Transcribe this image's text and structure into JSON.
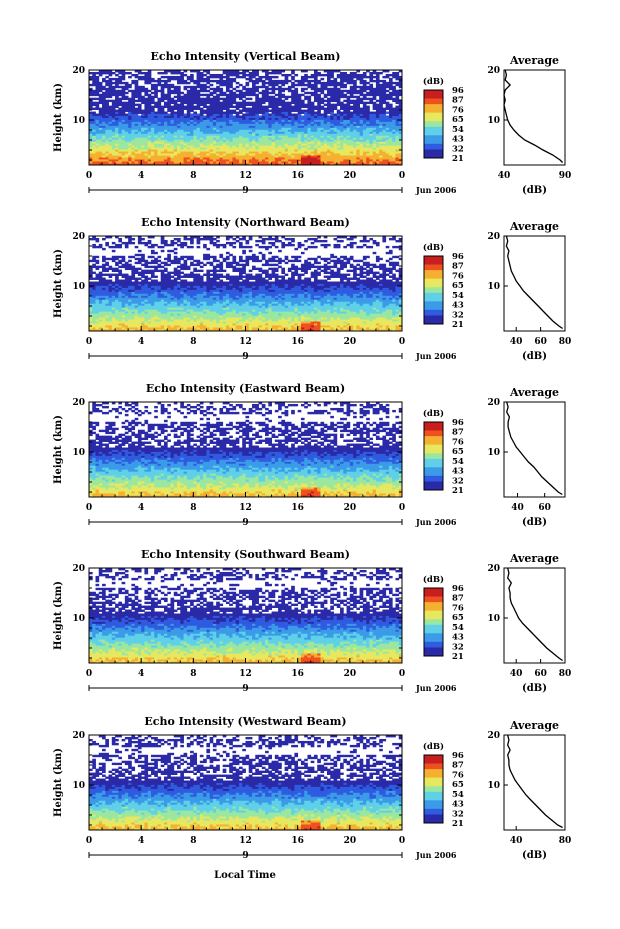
{
  "figure": {
    "bottom_xlabel": "Local Time",
    "heatmap_ylabel": "Height (km)",
    "colorbar_unit": "(dB)",
    "colorbar_ticks": [
      "96",
      "87",
      "76",
      "65",
      "54",
      "43",
      "32",
      "21"
    ],
    "date_axis_center_label": "9",
    "date_suffix": "Jun 2006",
    "profile_title": "Average",
    "profile_xlabel": "(dB)",
    "colorscale": [
      "#2a2aa8",
      "#2f5be0",
      "#3b9be8",
      "#5fd0e8",
      "#9be7a0",
      "#e8e860",
      "#f5b030",
      "#ee5020",
      "#c81e1e"
    ]
  },
  "chart_data": [
    {
      "type": "heatmap",
      "title": "Echo Intensity (Vertical Beam)",
      "ylabel": "Height (km)",
      "x_ticks": [
        "0",
        "4",
        "8",
        "12",
        "16",
        "20",
        "0"
      ],
      "y_ticks": [
        "20",
        "10"
      ],
      "xlim": [
        0,
        24
      ],
      "ylim": [
        1,
        20
      ],
      "colorbar": {
        "unit": "(dB)",
        "min": 21,
        "max": 96,
        "ticks": [
          96,
          87,
          76,
          65,
          54,
          43,
          32,
          21
        ]
      },
      "profile": {
        "title": "Average",
        "xlabel": "(dB)",
        "x_ticks": [
          "40",
          "90"
        ],
        "y_ticks": [
          "20",
          "10"
        ],
        "xlim": [
          40,
          90
        ],
        "ylim": [
          1,
          20
        ],
        "points": [
          [
            88,
            1.5
          ],
          [
            86,
            2
          ],
          [
            80,
            3
          ],
          [
            72,
            4
          ],
          [
            65,
            5
          ],
          [
            57,
            6
          ],
          [
            52,
            7
          ],
          [
            48,
            8
          ],
          [
            45,
            9
          ],
          [
            43,
            10
          ],
          [
            42,
            11
          ],
          [
            41,
            12
          ],
          [
            40,
            13
          ],
          [
            41,
            14
          ],
          [
            40,
            15
          ],
          [
            41,
            16
          ],
          [
            45,
            17
          ],
          [
            41,
            18
          ],
          [
            42,
            19
          ],
          [
            41,
            20
          ]
        ]
      }
    },
    {
      "type": "heatmap",
      "title": "Echo Intensity (Northward Beam)",
      "ylabel": "Height (km)",
      "x_ticks": [
        "0",
        "4",
        "8",
        "12",
        "16",
        "20",
        "0"
      ],
      "y_ticks": [
        "20",
        "10"
      ],
      "xlim": [
        0,
        24
      ],
      "ylim": [
        1,
        20
      ],
      "colorbar": {
        "unit": "(dB)",
        "min": 21,
        "max": 96,
        "ticks": [
          96,
          87,
          76,
          65,
          54,
          43,
          32,
          21
        ]
      },
      "profile": {
        "title": "Average",
        "xlabel": "(dB)",
        "x_ticks": [
          "40",
          "60",
          "80"
        ],
        "y_ticks": [
          "20",
          "10"
        ],
        "xlim": [
          30,
          80
        ],
        "ylim": [
          1,
          20
        ],
        "points": [
          [
            78,
            1.5
          ],
          [
            75,
            2
          ],
          [
            70,
            3
          ],
          [
            66,
            4
          ],
          [
            62,
            5
          ],
          [
            58,
            6
          ],
          [
            54,
            7
          ],
          [
            50,
            8
          ],
          [
            46,
            9
          ],
          [
            43,
            10
          ],
          [
            40,
            11
          ],
          [
            38,
            12
          ],
          [
            36,
            13
          ],
          [
            35,
            14
          ],
          [
            34,
            15
          ],
          [
            33,
            16
          ],
          [
            34,
            17
          ],
          [
            32,
            18
          ],
          [
            33,
            19
          ],
          [
            32,
            20
          ]
        ]
      }
    },
    {
      "type": "heatmap",
      "title": "Echo Intensity (Eastward Beam)",
      "ylabel": "Height (km)",
      "x_ticks": [
        "0",
        "4",
        "8",
        "12",
        "16",
        "20",
        "0"
      ],
      "y_ticks": [
        "20",
        "10"
      ],
      "xlim": [
        0,
        24
      ],
      "ylim": [
        1,
        20
      ],
      "colorbar": {
        "unit": "(dB)",
        "min": 21,
        "max": 96,
        "ticks": [
          96,
          87,
          76,
          65,
          54,
          43,
          32,
          21
        ]
      },
      "profile": {
        "title": "Average",
        "xlabel": "(dB)",
        "x_ticks": [
          "40",
          "60"
        ],
        "y_ticks": [
          "20",
          "10"
        ],
        "xlim": [
          30,
          75
        ],
        "ylim": [
          1,
          20
        ],
        "points": [
          [
            73,
            1.5
          ],
          [
            70,
            2
          ],
          [
            66,
            3
          ],
          [
            62,
            4
          ],
          [
            58,
            5
          ],
          [
            55,
            6
          ],
          [
            52,
            7
          ],
          [
            48,
            8
          ],
          [
            45,
            9
          ],
          [
            42,
            10
          ],
          [
            39,
            11
          ],
          [
            37,
            12
          ],
          [
            35,
            13
          ],
          [
            34,
            14
          ],
          [
            33,
            15
          ],
          [
            33,
            16
          ],
          [
            34,
            17
          ],
          [
            32,
            18
          ],
          [
            33,
            19
          ],
          [
            32,
            20
          ]
        ]
      }
    },
    {
      "type": "heatmap",
      "title": "Echo Intensity (Southward Beam)",
      "ylabel": "Height (km)",
      "x_ticks": [
        "0",
        "4",
        "8",
        "12",
        "16",
        "20",
        "0"
      ],
      "y_ticks": [
        "20",
        "10"
      ],
      "xlim": [
        0,
        24
      ],
      "ylim": [
        1,
        20
      ],
      "colorbar": {
        "unit": "(dB)",
        "min": 21,
        "max": 96,
        "ticks": [
          96,
          87,
          76,
          65,
          54,
          43,
          32,
          21
        ]
      },
      "profile": {
        "title": "Average",
        "xlabel": "(dB)",
        "x_ticks": [
          "40",
          "60",
          "80"
        ],
        "y_ticks": [
          "20",
          "10"
        ],
        "xlim": [
          30,
          80
        ],
        "ylim": [
          1,
          20
        ],
        "points": [
          [
            78,
            1.5
          ],
          [
            75,
            2
          ],
          [
            70,
            3
          ],
          [
            65,
            4
          ],
          [
            61,
            5
          ],
          [
            57,
            6
          ],
          [
            53,
            7
          ],
          [
            49,
            8
          ],
          [
            45,
            9
          ],
          [
            42,
            10
          ],
          [
            40,
            11
          ],
          [
            38,
            12
          ],
          [
            36,
            13
          ],
          [
            35,
            14
          ],
          [
            35,
            15
          ],
          [
            34,
            16
          ],
          [
            36,
            17
          ],
          [
            33,
            18
          ],
          [
            34,
            19
          ],
          [
            33,
            20
          ]
        ]
      }
    },
    {
      "type": "heatmap",
      "title": "Echo Intensity (Westward Beam)",
      "ylabel": "Height (km)",
      "x_ticks": [
        "0",
        "4",
        "8",
        "12",
        "16",
        "20",
        "0"
      ],
      "y_ticks": [
        "20",
        "10"
      ],
      "xlim": [
        0,
        24
      ],
      "ylim": [
        1,
        20
      ],
      "colorbar": {
        "unit": "(dB)",
        "min": 21,
        "max": 96,
        "ticks": [
          96,
          87,
          76,
          65,
          54,
          43,
          32,
          21
        ]
      },
      "profile": {
        "title": "Average",
        "xlabel": "(dB)",
        "x_ticks": [
          "40",
          "80"
        ],
        "y_ticks": [
          "20",
          "10"
        ],
        "xlim": [
          30,
          80
        ],
        "ylim": [
          1,
          20
        ],
        "points": [
          [
            78,
            1.5
          ],
          [
            74,
            2
          ],
          [
            69,
            3
          ],
          [
            64,
            4
          ],
          [
            60,
            5
          ],
          [
            56,
            6
          ],
          [
            52,
            7
          ],
          [
            48,
            8
          ],
          [
            45,
            9
          ],
          [
            42,
            10
          ],
          [
            39,
            11
          ],
          [
            37,
            12
          ],
          [
            35,
            13
          ],
          [
            34,
            14
          ],
          [
            34,
            15
          ],
          [
            33,
            16
          ],
          [
            35,
            17
          ],
          [
            33,
            18
          ],
          [
            34,
            19
          ],
          [
            33,
            20
          ]
        ]
      }
    }
  ]
}
